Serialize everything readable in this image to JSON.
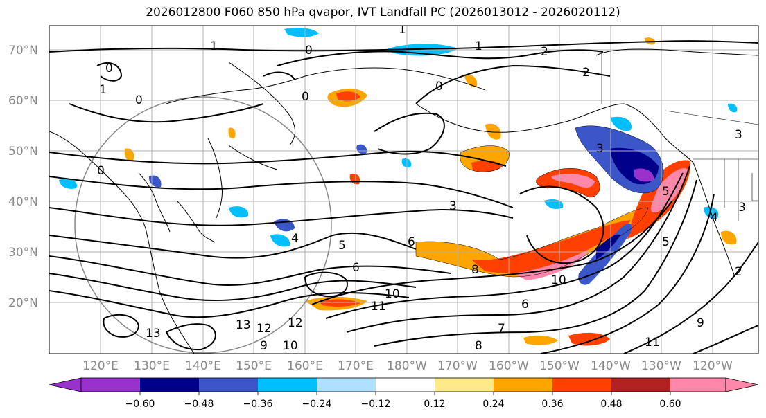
{
  "title": "2026012800 F060 850 hPa qvapor, IVT Landfall PC (2026013012 - 2026020112)",
  "lat_labels": [
    "70°N",
    "60°N",
    "50°N",
    "40°N",
    "30°N",
    "20°N"
  ],
  "lon_labels": [
    "120°E",
    "130°E",
    "140°E",
    "150°E",
    "160°E",
    "170°E",
    "180°W",
    "170°W",
    "160°W",
    "150°W",
    "140°W",
    "130°W",
    "120°W"
  ],
  "colorbar": {
    "ticks": [
      "−0.60",
      "−0.48",
      "−0.36",
      "−0.24",
      "−0.12",
      "0.12",
      "0.24",
      "0.36",
      "0.48",
      "0.60"
    ],
    "colors": {
      "below": "#9932cc",
      "bins": [
        "#9932cc",
        "#00008b",
        "#3a56c8",
        "#00bfff",
        "#b0e0ff",
        "#ffffff",
        "#ffea8a",
        "#ffa500",
        "#ff4000",
        "#b22222",
        "#ff88aa"
      ]
    }
  },
  "contour_labels": [
    "1",
    "1",
    "2",
    "2",
    "0",
    "0",
    "1",
    "1",
    "0",
    "0",
    "0",
    "0",
    "3",
    "3",
    "3",
    "4",
    "5",
    "5",
    "6",
    "6",
    "8",
    "10",
    "10",
    "11",
    "11",
    "12",
    "12",
    "13",
    "13",
    "9",
    "10",
    "9",
    "8",
    "7",
    "6",
    "5",
    "4",
    "3",
    "2"
  ]
}
